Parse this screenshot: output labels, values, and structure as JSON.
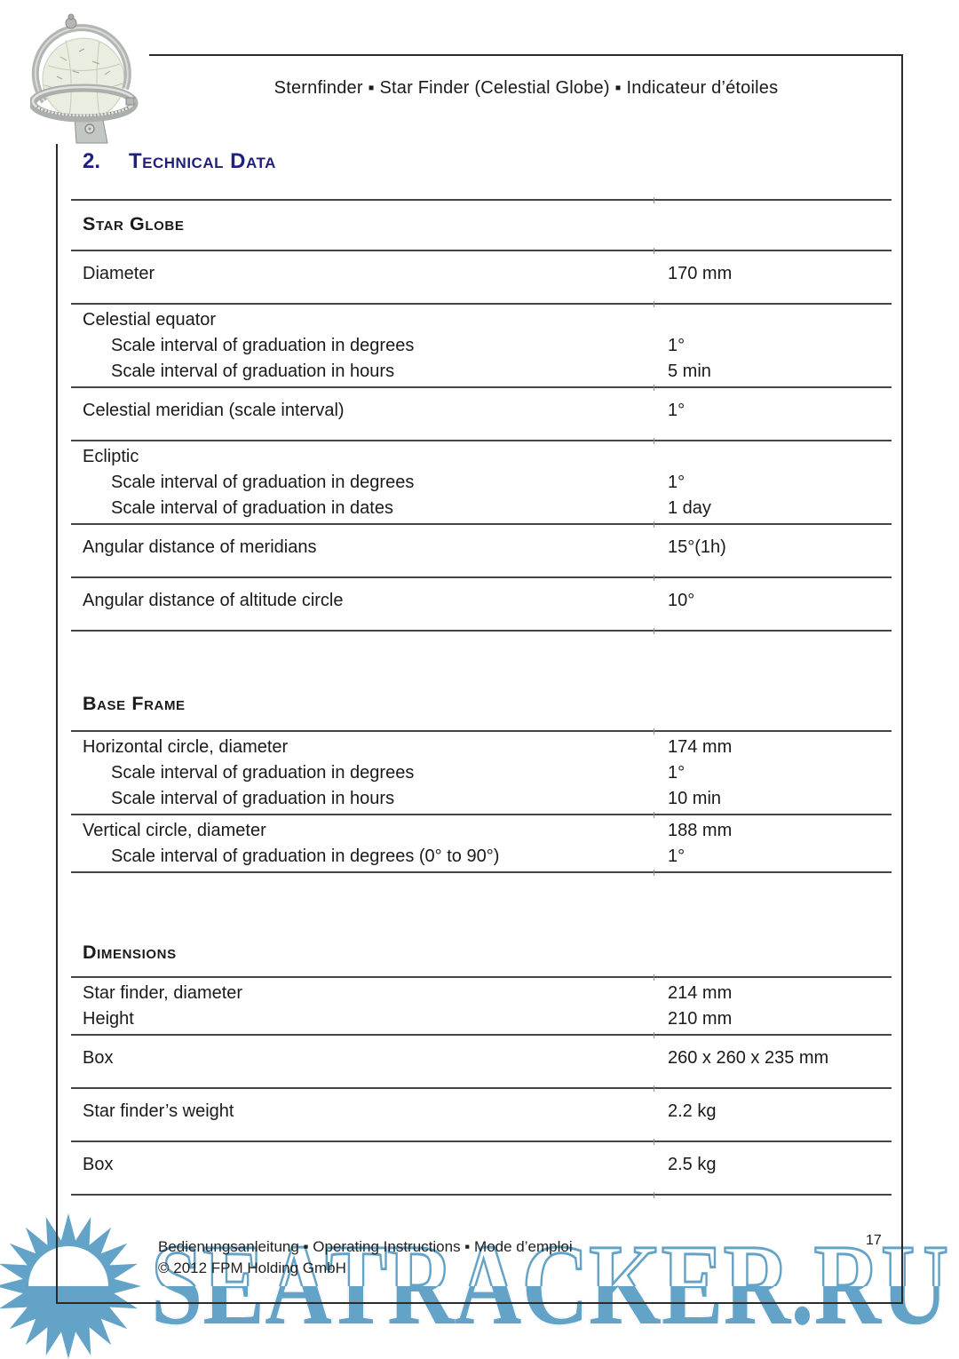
{
  "header": {
    "title": "Sternfinder ▪ Star Finder (Celestial Globe) ▪ Indicateur d’étoiles",
    "logo_alt": "celestial-globe-logo"
  },
  "heading": {
    "number": "2.",
    "title": "Technical Data"
  },
  "sections": [
    {
      "title": "Star Globe",
      "groups": [
        {
          "rows": [
            {
              "label": "Diameter",
              "value": "170 mm"
            }
          ]
        },
        {
          "rows": [
            {
              "label": "Celestial equator",
              "value": ""
            },
            {
              "label": "Scale interval of graduation in degrees",
              "value": "1°"
            },
            {
              "label": "Scale interval of graduation in hours",
              "value": "5 min"
            }
          ]
        },
        {
          "rows": [
            {
              "label": "Celestial meridian (scale interval)",
              "value": "1°"
            }
          ]
        },
        {
          "rows": [
            {
              "label": "Ecliptic",
              "value": ""
            },
            {
              "label": "Scale interval of graduation in degrees",
              "value": "1°"
            },
            {
              "label": "Scale interval of graduation in dates",
              "value": "1 day"
            }
          ]
        },
        {
          "rows": [
            {
              "label": "Angular distance of meridians",
              "value": "15°(1h)"
            }
          ]
        },
        {
          "rows": [
            {
              "label": "Angular distance of altitude circle",
              "value": "10°"
            }
          ]
        }
      ]
    },
    {
      "title": "Base Frame",
      "groups": [
        {
          "rows": [
            {
              "label": "Horizontal circle, diameter",
              "value": "174 mm"
            },
            {
              "label": "Scale interval of graduation in degrees",
              "value": "1°"
            },
            {
              "label": "Scale interval of graduation in hours",
              "value": "10 min"
            }
          ]
        },
        {
          "rows": [
            {
              "label": "Vertical circle, diameter",
              "value": "188 mm"
            },
            {
              "label": "Scale interval of graduation in degrees (0° to  90°)",
              "value": "1°"
            }
          ]
        }
      ]
    },
    {
      "title": "Dimensions",
      "groups": [
        {
          "rows": [
            {
              "label": "Star finder, diameter",
              "value": "214 mm"
            },
            {
              "label": "Height",
              "value": "210 mm"
            }
          ]
        },
        {
          "rows": [
            {
              "label": "Box",
              "value": "260 x 260 x 235 mm"
            }
          ]
        },
        {
          "rows": [
            {
              "label": "Star finder’s weight",
              "value": "2.2 kg"
            }
          ]
        },
        {
          "rows": [
            {
              "label": "Box",
              "value": "2.5 kg"
            }
          ]
        }
      ]
    }
  ],
  "footer": {
    "line1": "Bedienungsanleitung ▪  Operating Instructions ▪ Mode d’emploi",
    "line2": "© 2012 FPM Holding GmbH",
    "page_number": "17"
  },
  "watermark": {
    "text": "SEATRACKER.RU",
    "sun_icon": "sun-logo"
  },
  "colors": {
    "heading_accent": "#1F1F7E",
    "text": "#1a1a1a",
    "rule": "#454545",
    "frame": "#2b2b2b",
    "watermark_blue": "#64A3C8"
  }
}
